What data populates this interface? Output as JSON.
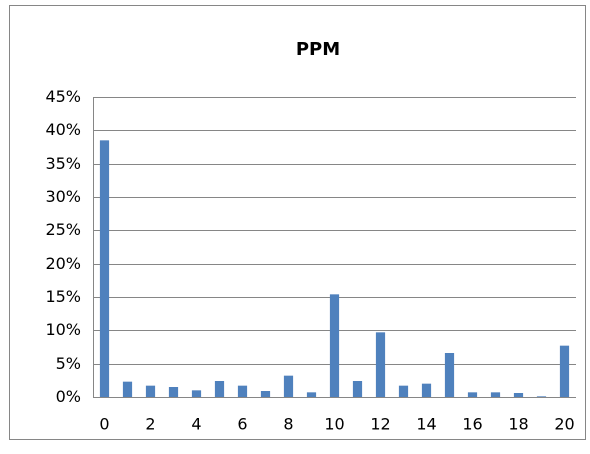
{
  "chart_data": {
    "type": "bar",
    "title": "PPM",
    "categories": [
      "0",
      null,
      "2",
      null,
      "4",
      null,
      "6",
      null,
      "8",
      null,
      "10",
      null,
      "12",
      null,
      "14",
      null,
      "16",
      null,
      "18",
      null,
      "20"
    ],
    "values": [
      38.5,
      2.3,
      1.7,
      1.5,
      1.0,
      2.4,
      1.7,
      0.9,
      3.2,
      0.7,
      15.4,
      2.4,
      9.7,
      1.7,
      2.0,
      6.6,
      0.7,
      0.7,
      0.6,
      0.1,
      7.7
    ],
    "color": "#4f81bd",
    "ylim": [
      0,
      45
    ],
    "yticks": [
      {
        "value": 0,
        "label": "0%"
      },
      {
        "value": 5,
        "label": "5%"
      },
      {
        "value": 10,
        "label": "10%"
      },
      {
        "value": 15,
        "label": "15%"
      },
      {
        "value": 20,
        "label": "20%"
      },
      {
        "value": 25,
        "label": "25%"
      },
      {
        "value": 30,
        "label": "30%"
      },
      {
        "value": 35,
        "label": "35%"
      },
      {
        "value": 40,
        "label": "40%"
      },
      {
        "value": 45,
        "label": "45%"
      }
    ],
    "grid": true
  }
}
